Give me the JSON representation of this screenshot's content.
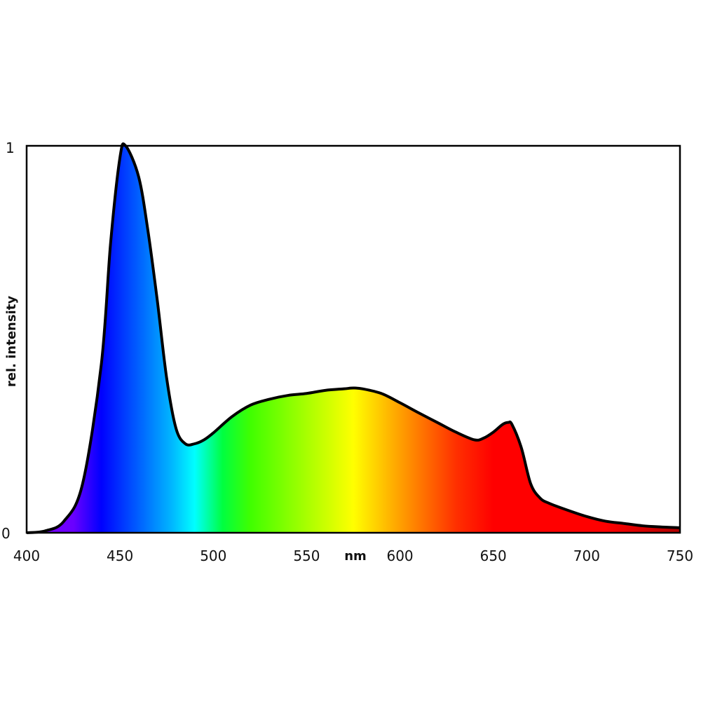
{
  "chart_data": {
    "type": "area",
    "title": "",
    "xlabel": "nm",
    "ylabel": "rel. intensity",
    "xlim": [
      400,
      750
    ],
    "ylim": [
      0,
      1
    ],
    "x_ticks": [
      "400",
      "450",
      "500",
      "550",
      "600",
      "650",
      "700",
      "750"
    ],
    "y_ticks": [
      "0",
      "1"
    ],
    "grid": false,
    "fill": "visible-spectrum gradient",
    "line_color": "#000000",
    "x": [
      400,
      410,
      420,
      430,
      440,
      445,
      450,
      453,
      460,
      465,
      470,
      475,
      480,
      485,
      490,
      495,
      500,
      510,
      520,
      530,
      540,
      550,
      560,
      570,
      575,
      580,
      590,
      600,
      610,
      620,
      630,
      640,
      645,
      650,
      655,
      658,
      660,
      665,
      670,
      675,
      680,
      690,
      700,
      710,
      720,
      730,
      740,
      750
    ],
    "y": [
      0,
      0.005,
      0.03,
      0.127,
      0.435,
      0.75,
      0.97,
      1.0,
      0.92,
      0.78,
      0.6,
      0.4,
      0.27,
      0.23,
      0.23,
      0.24,
      0.258,
      0.3,
      0.33,
      0.345,
      0.355,
      0.36,
      0.368,
      0.372,
      0.374,
      0.372,
      0.36,
      0.336,
      0.31,
      0.285,
      0.26,
      0.24,
      0.245,
      0.26,
      0.28,
      0.285,
      0.28,
      0.22,
      0.127,
      0.09,
      0.076,
      0.058,
      0.042,
      0.03,
      0.024,
      0.018,
      0.015,
      0.013
    ],
    "spectrum_stops": [
      {
        "nm": 400,
        "color": "#8000ff"
      },
      {
        "nm": 425,
        "color": "#6a00ff"
      },
      {
        "nm": 440,
        "color": "#0000ff"
      },
      {
        "nm": 460,
        "color": "#0060ff"
      },
      {
        "nm": 478,
        "color": "#00b8ff"
      },
      {
        "nm": 490,
        "color": "#00ffff"
      },
      {
        "nm": 505,
        "color": "#00ff40"
      },
      {
        "nm": 520,
        "color": "#40ff00"
      },
      {
        "nm": 550,
        "color": "#a8ff00"
      },
      {
        "nm": 575,
        "color": "#ffff00"
      },
      {
        "nm": 600,
        "color": "#ffa000"
      },
      {
        "nm": 630,
        "color": "#ff3000"
      },
      {
        "nm": 650,
        "color": "#ff0000"
      },
      {
        "nm": 710,
        "color": "#ff0000"
      },
      {
        "nm": 750,
        "color": "#b00000"
      }
    ]
  }
}
